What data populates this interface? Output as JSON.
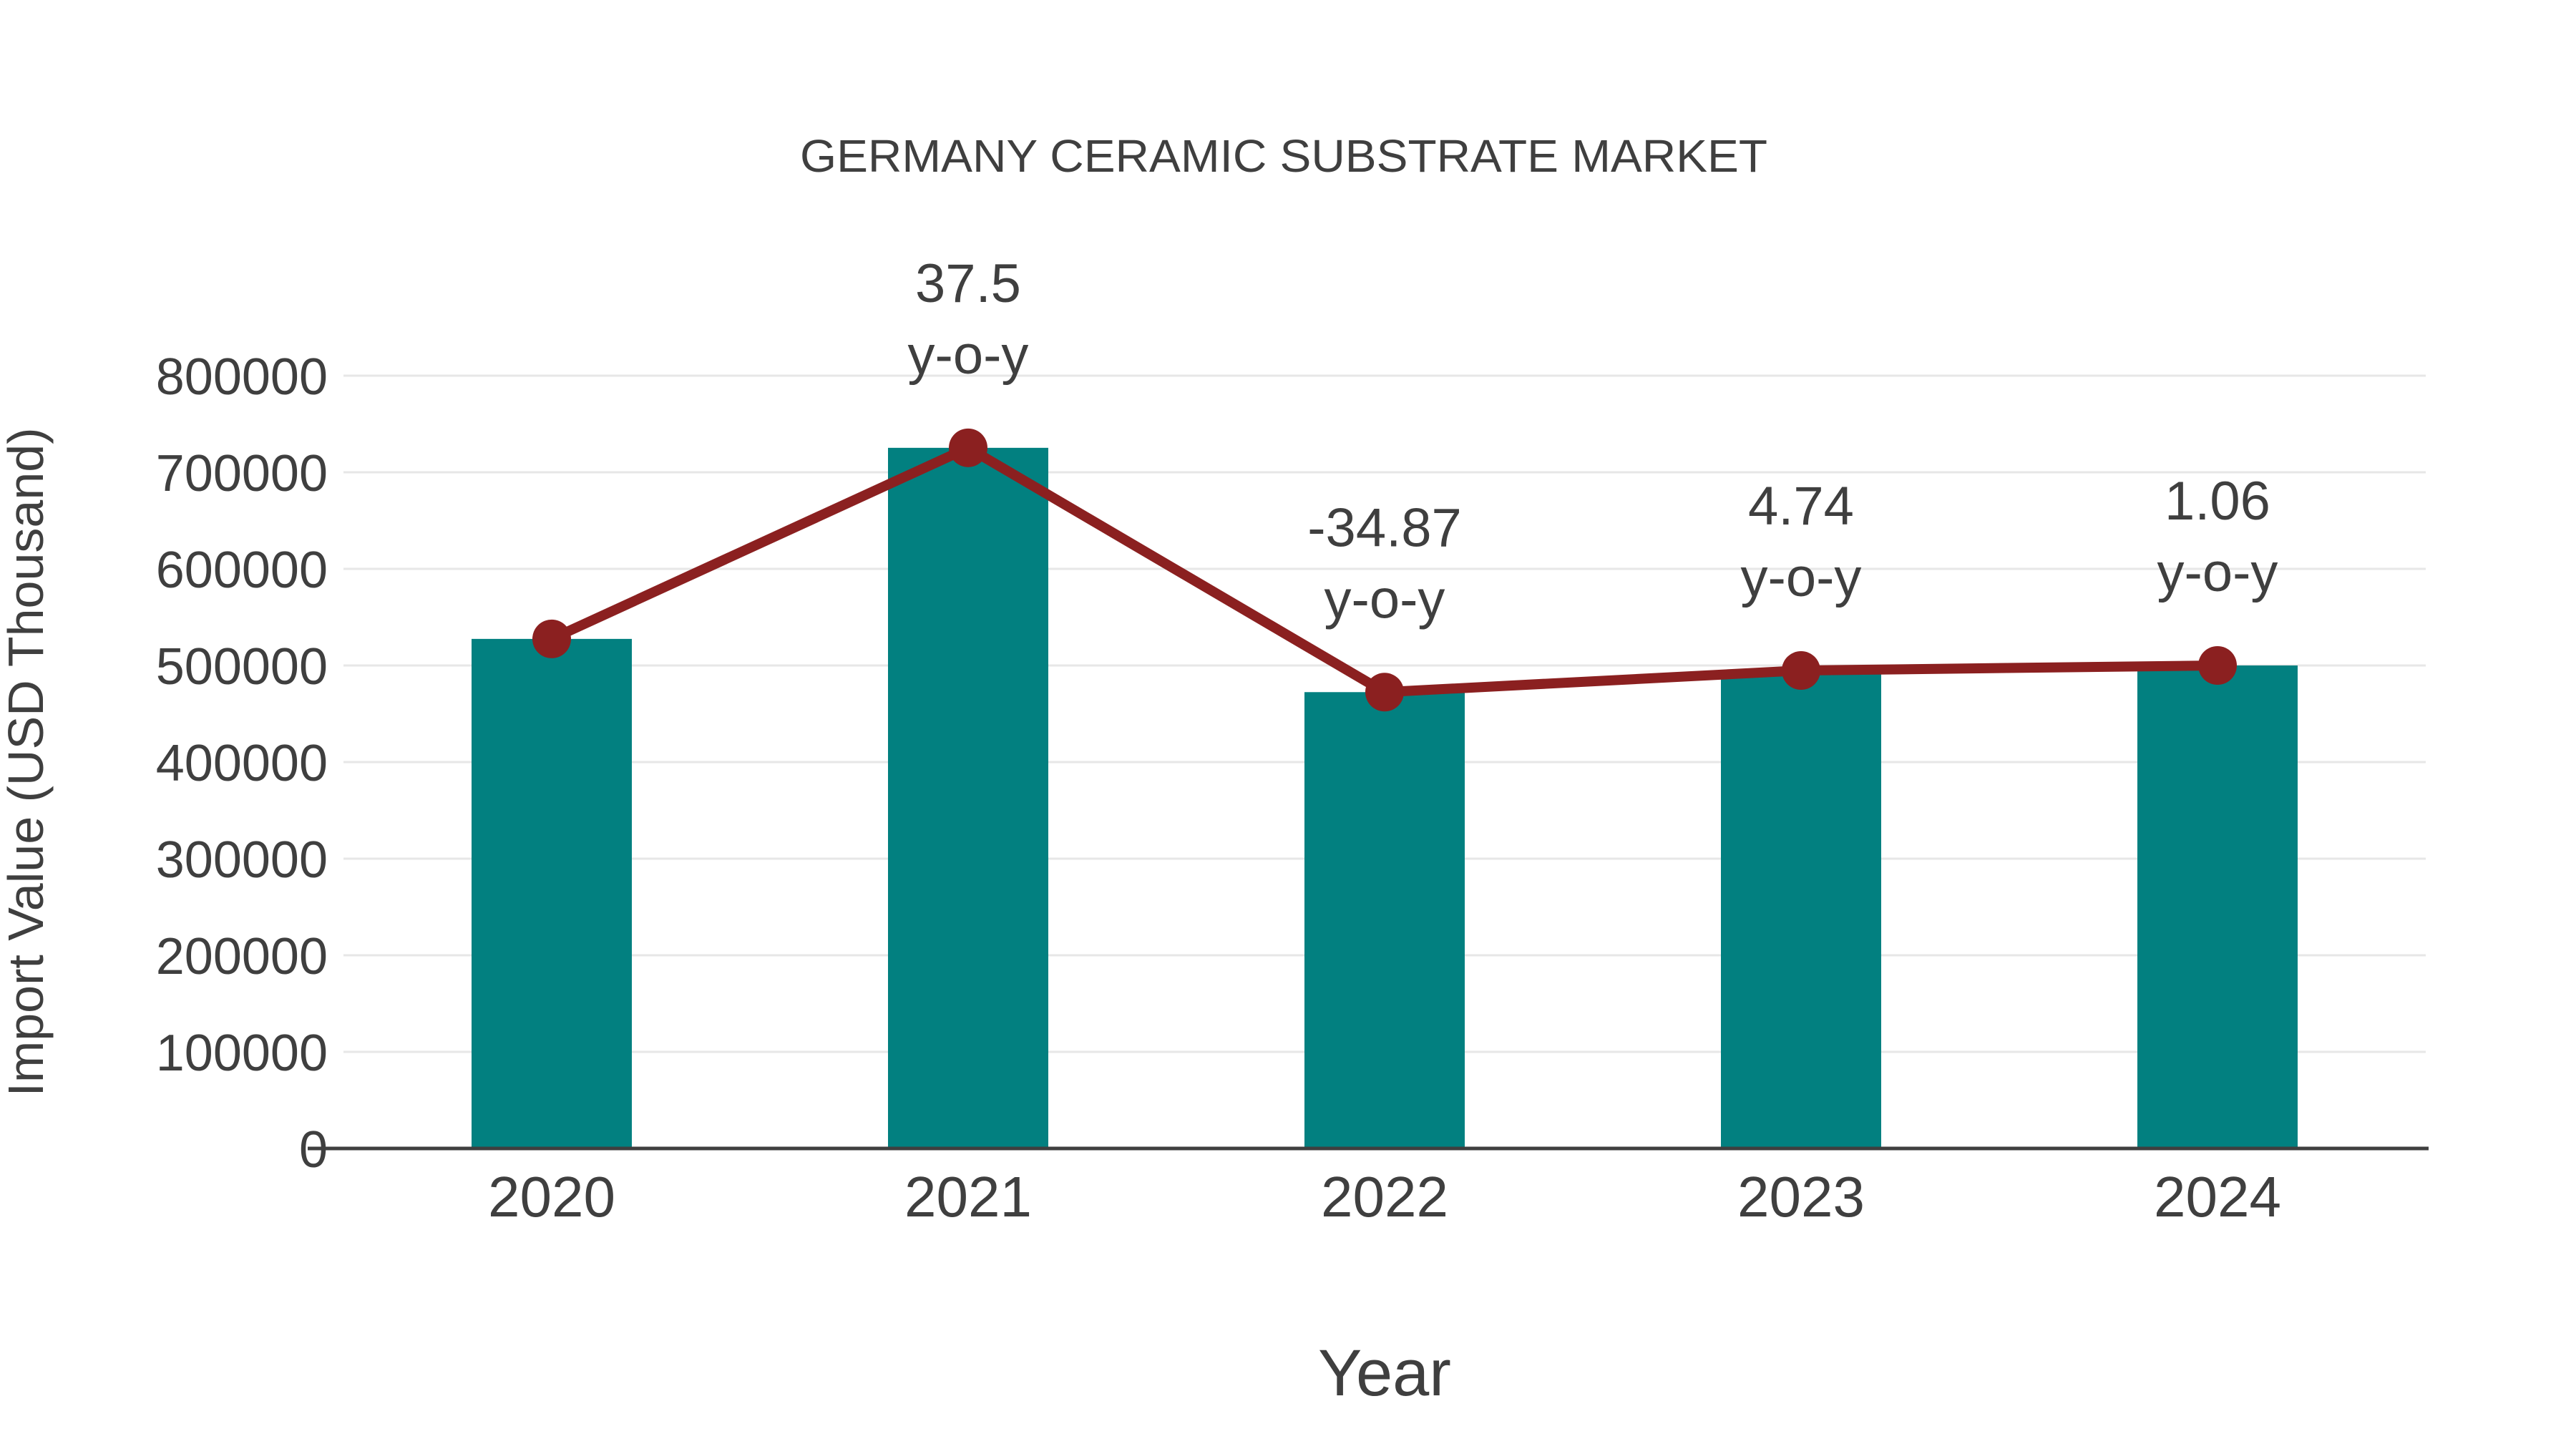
{
  "chart_data": {
    "type": "bar+line",
    "title": "GERMANY CERAMIC SUBSTRATE MARKET",
    "xlabel": "Year",
    "ylabel": "Import Value (USD Thousand)",
    "categories": [
      "2020",
      "2021",
      "2022",
      "2023",
      "2024"
    ],
    "bar_series": {
      "name": "Import Value (USD Thousand)",
      "values": [
        527500,
        725300,
        472400,
        494800,
        500000
      ],
      "color": "#028080"
    },
    "line_series": {
      "name": "y-o-y",
      "plotted_at_values": [
        527500,
        725300,
        472400,
        494800,
        500000
      ],
      "yoy_percent": [
        null,
        37.5,
        -34.87,
        4.74,
        1.06
      ],
      "color": "#8B2020"
    },
    "annotations": [
      {
        "category": "2021",
        "value_text": "37.5",
        "suffix": "y-o-y"
      },
      {
        "category": "2022",
        "value_text": "-34.87",
        "suffix": "y-o-y"
      },
      {
        "category": "2023",
        "value_text": "4.74",
        "suffix": "y-o-y"
      },
      {
        "category": "2024",
        "value_text": "1.06",
        "suffix": "y-o-y"
      }
    ],
    "ylim": [
      0,
      800000
    ],
    "ytick_step": 100000,
    "yticks": [
      "0",
      "100000",
      "200000",
      "300000",
      "400000",
      "500000",
      "600000",
      "700000",
      "800000"
    ],
    "grid": "horizontal",
    "legend_position": "none",
    "colors": {
      "bar": "#028080",
      "line": "#8B2020",
      "text": "#3f3f3f",
      "gridline": "#e7e7e7",
      "axis": "#3f3f3f",
      "background": "#ffffff"
    }
  }
}
